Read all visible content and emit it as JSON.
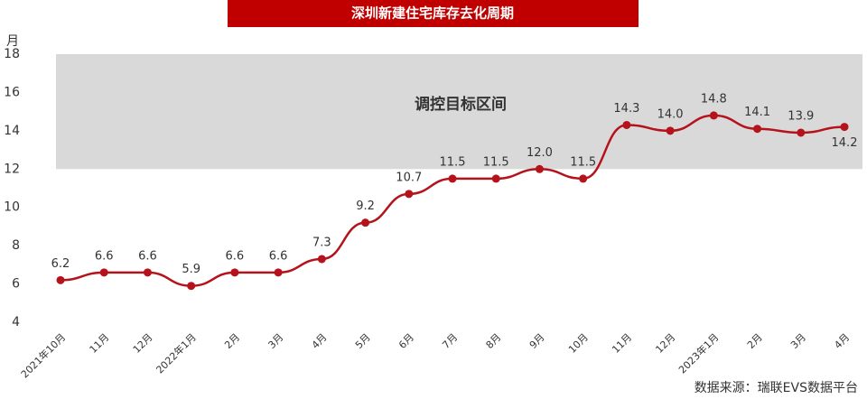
{
  "chart_data": {
    "type": "line",
    "title": "深圳新建住宅库存去化周期",
    "y_label": "月",
    "band_label": "调控目标区间",
    "band": [
      12,
      18
    ],
    "source": "数据来源：瑞联EVS数据平台",
    "categories": [
      "2021年10月",
      "11月",
      "12月",
      "2022年1月",
      "2月",
      "3月",
      "4月",
      "5月",
      "6月",
      "7月",
      "8月",
      "9月",
      "10月",
      "11月",
      "12月",
      "2023年1月",
      "2月",
      "3月",
      "4月"
    ],
    "series": [
      {
        "name": "库存去化周期",
        "color": "#b5121b",
        "values": [
          6.2,
          6.6,
          6.6,
          5.9,
          6.6,
          6.6,
          7.3,
          9.2,
          10.7,
          11.5,
          11.5,
          12.0,
          11.5,
          14.3,
          14.0,
          14.8,
          14.1,
          13.9,
          14.2
        ],
        "value_labels": [
          "6.2",
          "6.6",
          "6.6",
          "5.9",
          "6.6",
          "6.6",
          "7.3",
          "9.2",
          "10.7",
          "11.5",
          "11.5",
          "12.0",
          "11.5",
          "14.3",
          "14.0",
          "14.8",
          "14.1",
          "13.9",
          "14.2"
        ]
      }
    ],
    "ylim": [
      4,
      18
    ],
    "yticks": [
      4,
      6,
      8,
      10,
      12,
      14,
      16,
      18
    ]
  }
}
